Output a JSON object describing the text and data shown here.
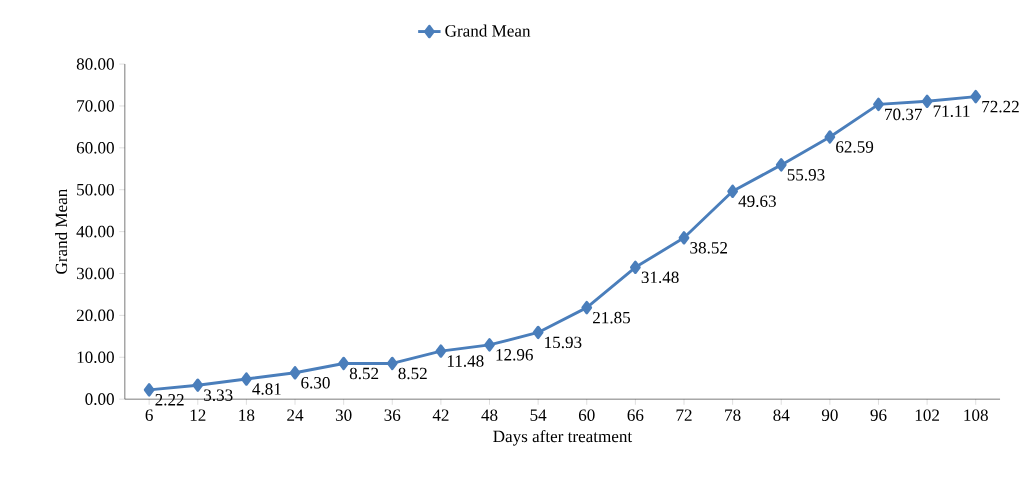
{
  "chart_data": {
    "type": "line",
    "xlabel": "Days after treatment",
    "ylabel": "Grand Mean",
    "categories": [
      "6",
      "12",
      "18",
      "24",
      "30",
      "36",
      "42",
      "48",
      "54",
      "60",
      "66",
      "72",
      "78",
      "84",
      "90",
      "96",
      "102",
      "108"
    ],
    "series": [
      {
        "name": "Grand Mean",
        "color": "#4a7ebb",
        "values": [
          2.22,
          3.33,
          4.81,
          6.3,
          8.52,
          8.52,
          11.48,
          12.96,
          15.93,
          21.85,
          31.48,
          38.52,
          49.63,
          55.93,
          62.59,
          70.37,
          71.11,
          72.22
        ],
        "value_labels": [
          "2.22",
          "3.33",
          "4.81",
          "6.30",
          "8.52",
          "8.52",
          "11.48",
          "12.96",
          "15.93",
          "21.85",
          "31.48",
          "38.52",
          "49.63",
          "55.93",
          "62.59",
          "70.37",
          "71.11",
          "72.22"
        ]
      }
    ],
    "ylim": [
      0,
      80
    ],
    "yticks": [
      {
        "value": 0,
        "label": "0.00"
      },
      {
        "value": 10,
        "label": "10.00"
      },
      {
        "value": 20,
        "label": "20.00"
      },
      {
        "value": 30,
        "label": "30.00"
      },
      {
        "value": 40,
        "label": "40.00"
      },
      {
        "value": 50,
        "label": "50.00"
      },
      {
        "value": 60,
        "label": "60.00"
      },
      {
        "value": 70,
        "label": "70.00"
      },
      {
        "value": 80,
        "label": "80.00"
      }
    ],
    "grid": false,
    "legend": "top",
    "marker": "diamond",
    "line_style": "solid"
  }
}
